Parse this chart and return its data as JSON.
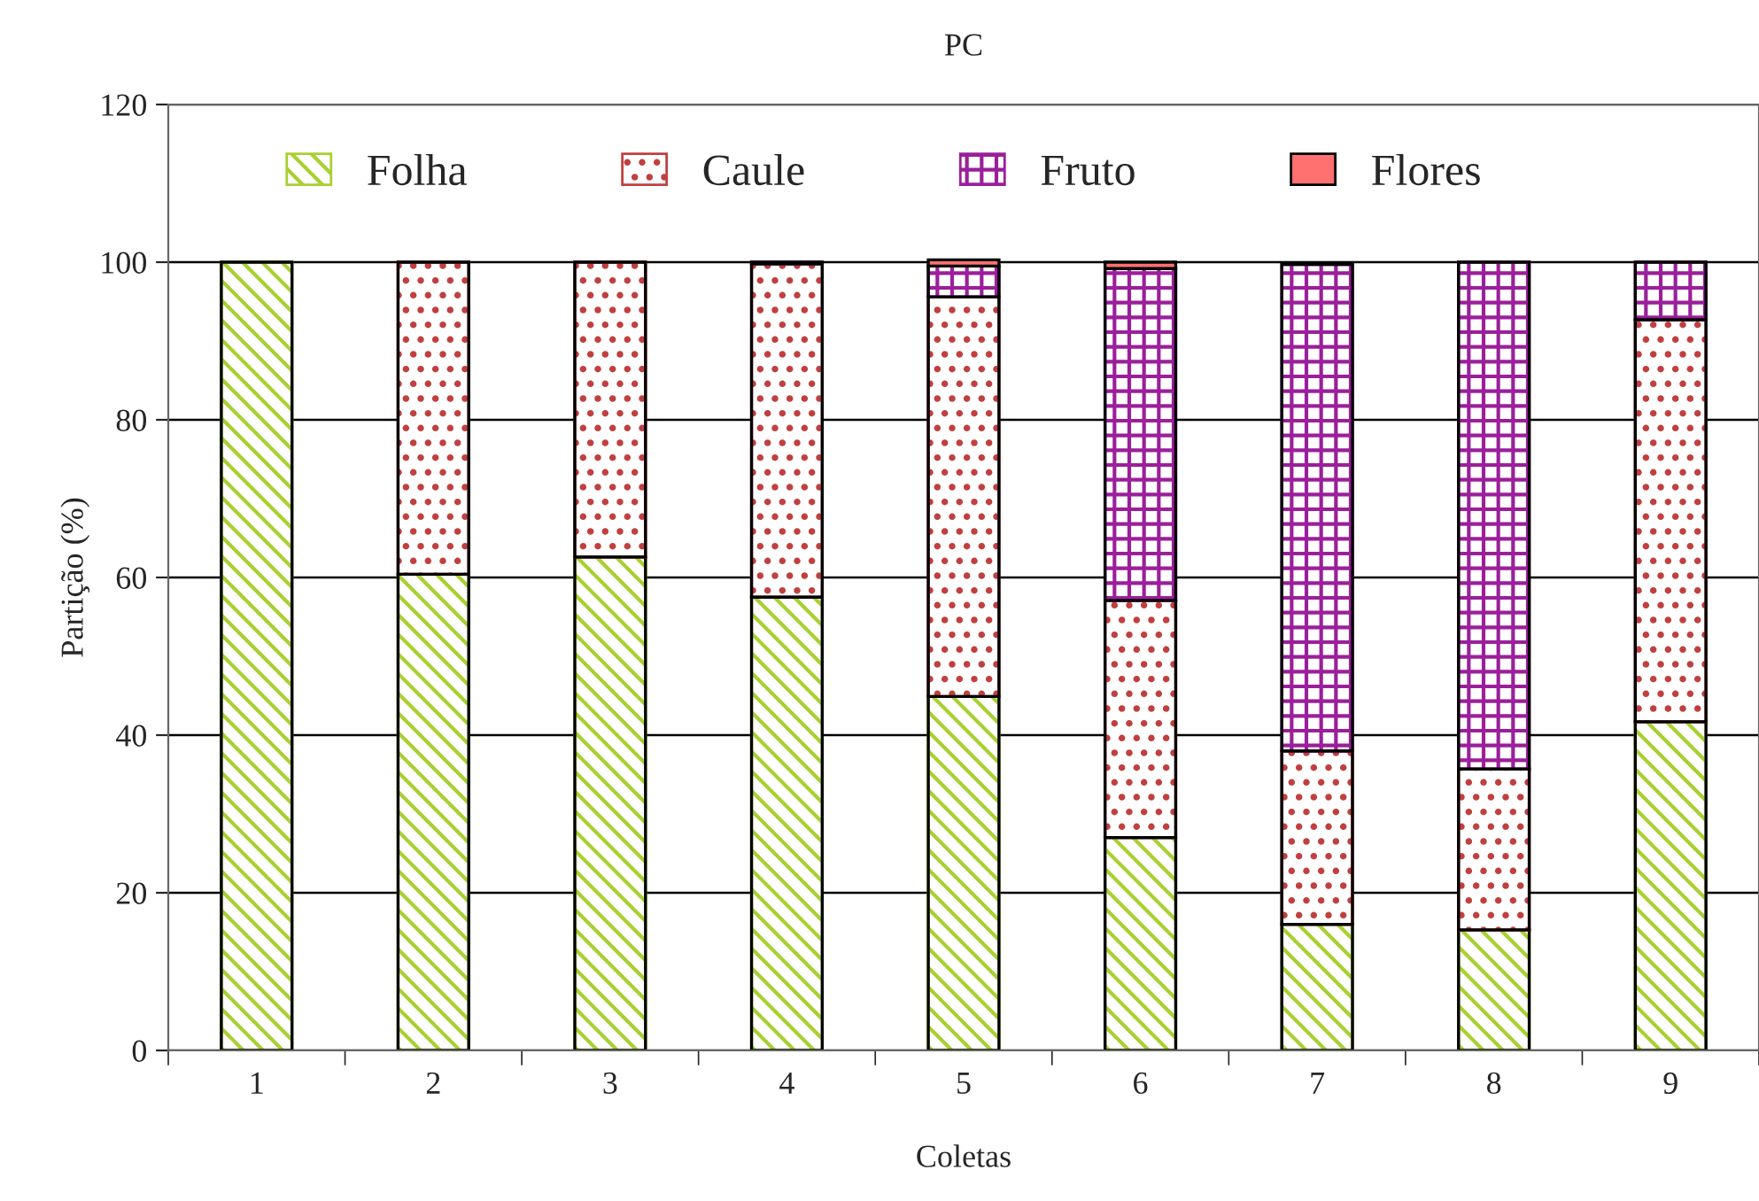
{
  "chart_data": {
    "type": "bar",
    "title": "PC",
    "xlabel": "Coletas",
    "ylabel": "Partição (%)",
    "categories": [
      "1",
      "2",
      "3",
      "4",
      "5",
      "6",
      "7",
      "8",
      "9"
    ],
    "stacked": true,
    "series": [
      {
        "name": "Folha",
        "color": "#a8d030",
        "values": [
          100,
          60.4,
          62.6,
          57.5,
          44.9,
          27.0,
          16.0,
          15.3,
          41.7
        ]
      },
      {
        "name": "Caule",
        "color": "#c04040",
        "values": [
          0,
          39.6,
          37.4,
          42.3,
          50.7,
          30.1,
          22.0,
          20.4,
          51.0
        ]
      },
      {
        "name": "Fruto",
        "color": "#9b1f9b",
        "values": [
          0,
          0,
          0,
          0.2,
          3.9,
          42.1,
          61.7,
          64.3,
          7.3
        ]
      },
      {
        "name": "Flores",
        "color": "#ff7070",
        "values": [
          0,
          0,
          0,
          0,
          0.8,
          0.8,
          null,
          0,
          0
        ]
      }
    ],
    "ylim": [
      0,
      120
    ],
    "yticks": [
      0,
      20,
      40,
      60,
      80,
      100,
      120
    ],
    "grid": "y",
    "legend": "top"
  }
}
